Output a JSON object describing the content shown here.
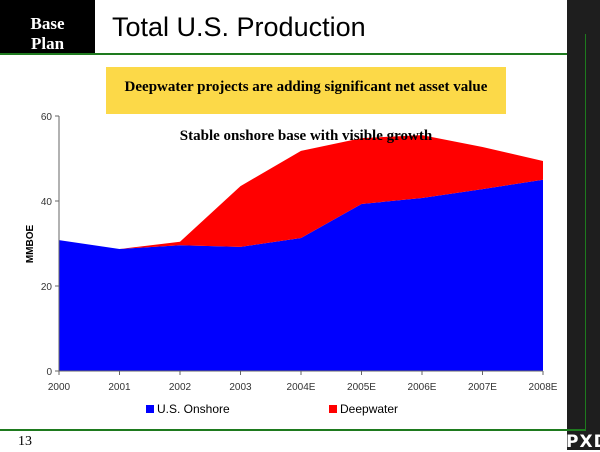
{
  "header": {
    "badge_line1": "Base",
    "badge_line2": "Plan",
    "title": "Total U.S. Production"
  },
  "callout": {
    "line1": "Deepwater projects are adding significant net asset value",
    "line2": "Stable onshore base with visible growth"
  },
  "footer": {
    "page_number": "13",
    "logo_text": "PXD"
  },
  "colors": {
    "onshore": "#0000ff",
    "deepwater": "#ff0000",
    "callout_bg": "#fcd948",
    "rule": "#1e7a1e"
  },
  "chart_data": {
    "type": "area",
    "stacked": true,
    "title": "",
    "xlabel": "",
    "ylabel": "MMBOE",
    "categories": [
      "2000",
      "2001",
      "2002",
      "2003",
      "2004E",
      "2005E",
      "2006E",
      "2007E",
      "2008E"
    ],
    "series": [
      {
        "name": "U.S. Onshore",
        "values": [
          30.8,
          28.7,
          29.6,
          29.2,
          31.3,
          39.3,
          40.7,
          42.8,
          45.0
        ]
      },
      {
        "name": "Deepwater",
        "values": [
          0,
          0,
          0.8,
          14.3,
          20.5,
          15.5,
          14.8,
          9.9,
          4.4
        ]
      }
    ],
    "ylim": [
      0,
      60
    ],
    "yticks": [
      0,
      20,
      40,
      60
    ],
    "grid": false,
    "legend_position": "bottom"
  }
}
